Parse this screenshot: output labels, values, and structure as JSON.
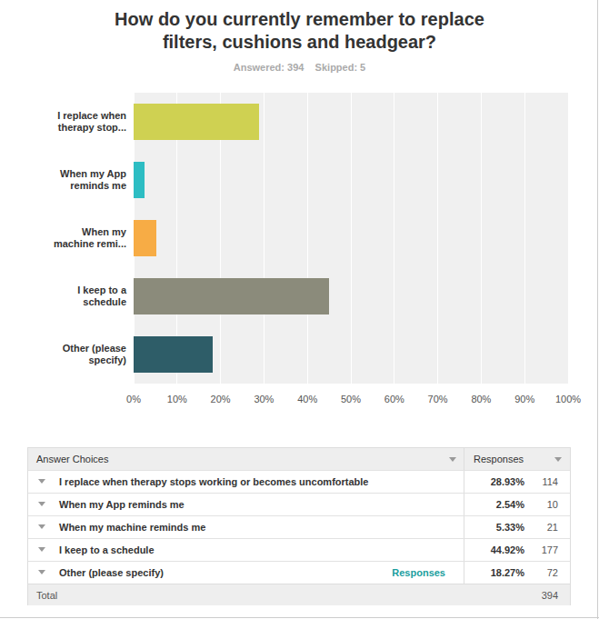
{
  "chart_data": {
    "type": "bar",
    "orientation": "horizontal",
    "title": "How do you currently remember to replace\nfilters, cushions and headgear?",
    "subtitle": "Answered: 394    Skipped: 5",
    "categories": [
      "I replace when therapy stop...",
      "When my App reminds me",
      "When my machine remi...",
      "I keep to a schedule",
      "Other (please specify)"
    ],
    "values": [
      28.93,
      2.54,
      5.33,
      44.92,
      18.27
    ],
    "colors": [
      "#cfd152",
      "#2dbdc3",
      "#f7ac45",
      "#8b8b7b",
      "#2e5d68"
    ],
    "xlim": [
      0,
      100
    ],
    "xticks": [
      {
        "value": 0,
        "label": "0%"
      },
      {
        "value": 10,
        "label": "10%"
      },
      {
        "value": 20,
        "label": "20%"
      },
      {
        "value": 30,
        "label": "30%"
      },
      {
        "value": 40,
        "label": "40%"
      },
      {
        "value": 50,
        "label": "50%"
      },
      {
        "value": 60,
        "label": "60%"
      },
      {
        "value": 70,
        "label": "70%"
      },
      {
        "value": 80,
        "label": "80%"
      },
      {
        "value": 90,
        "label": "90%"
      },
      {
        "value": 100,
        "label": "100%"
      }
    ],
    "grid": true
  },
  "table": {
    "header": [
      "Answer Choices",
      "Responses"
    ],
    "rows": [
      {
        "choice": "I replace when therapy stops working or becomes uncomfortable",
        "percent": "28.93%",
        "count": 114
      },
      {
        "choice": "When my App reminds me",
        "percent": "2.54%",
        "count": 10
      },
      {
        "choice": "When my machine reminds me",
        "percent": "5.33%",
        "count": 21
      },
      {
        "choice": "I keep to a schedule",
        "percent": "44.92%",
        "count": 177
      },
      {
        "choice": "Other (please specify)",
        "link": "Responses",
        "percent": "18.27%",
        "count": 72
      }
    ],
    "total": {
      "label": "Total",
      "count": 394
    }
  }
}
